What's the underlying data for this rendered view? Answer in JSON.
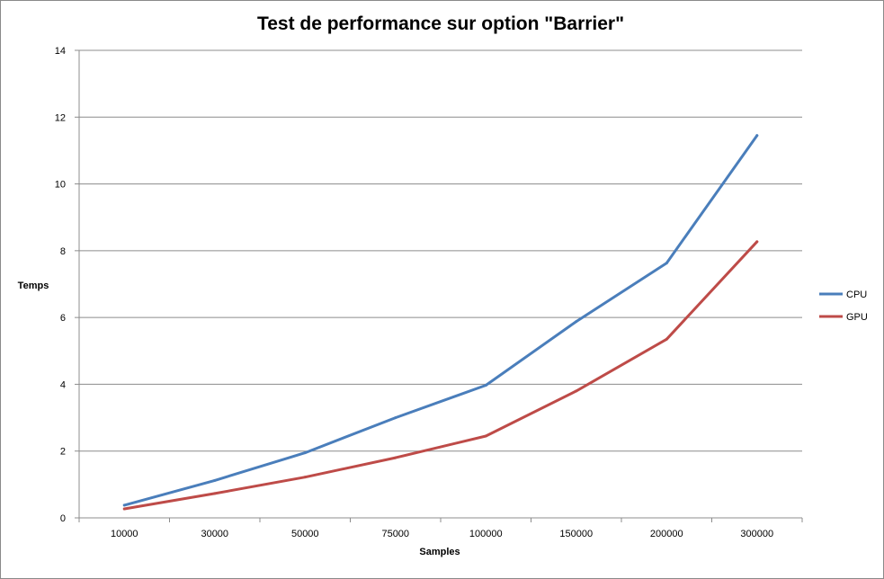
{
  "chart_data": {
    "type": "line",
    "title": "Test de performance sur option \"Barrier\"",
    "xlabel": "Samples",
    "ylabel": "Temps",
    "categories": [
      "10000",
      "30000",
      "50000",
      "75000",
      "100000",
      "150000",
      "200000",
      "300000"
    ],
    "ylim": [
      0,
      14
    ],
    "yticks": [
      0,
      2,
      4,
      6,
      8,
      10,
      12,
      14
    ],
    "grid": true,
    "legend_position": "right",
    "series": [
      {
        "name": "CPU",
        "color": "#4a7ebb",
        "values": [
          0.38,
          1.12,
          1.95,
          3.0,
          3.97,
          5.88,
          7.63,
          11.45
        ]
      },
      {
        "name": "GPU",
        "color": "#be4b48",
        "values": [
          0.27,
          0.73,
          1.22,
          1.8,
          2.45,
          3.8,
          5.35,
          8.27
        ]
      }
    ]
  }
}
